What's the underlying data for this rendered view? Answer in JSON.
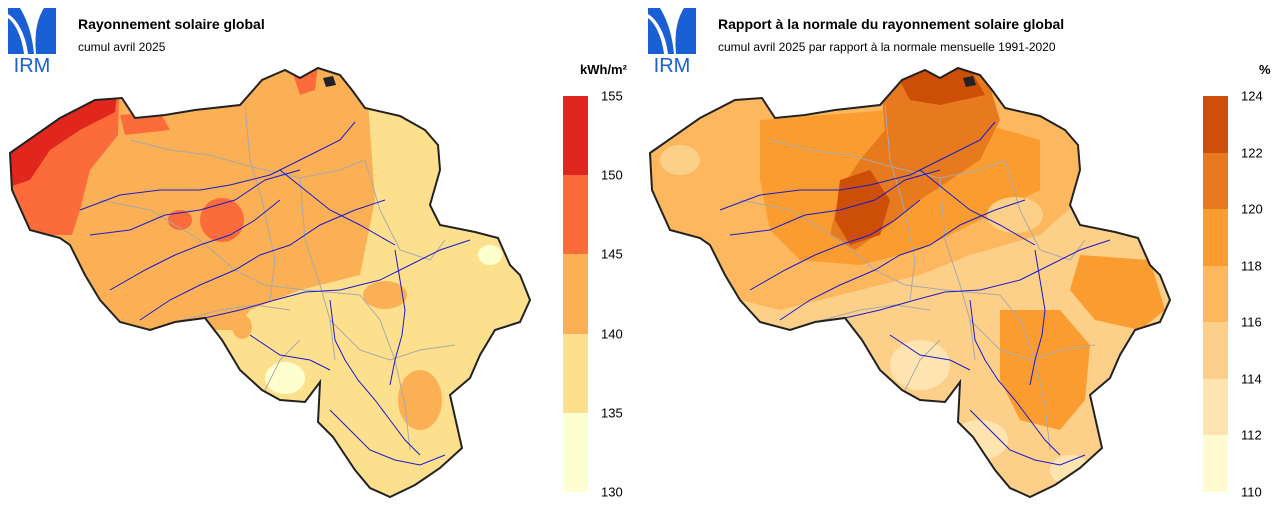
{
  "logo": {
    "text": "IRM",
    "color": "#1a5fd4"
  },
  "maps": [
    {
      "title": "Rayonnement solaire global",
      "subtitle": "cumul avril 2025",
      "unit": "kWh/m²",
      "legend": {
        "ticks": [
          "155",
          "150",
          "145",
          "140",
          "135",
          "130"
        ],
        "colors": [
          "#e0261d",
          "#fb6c3a",
          "#fbb055",
          "#fde08e",
          "#feffcf"
        ]
      }
    },
    {
      "title": "Rapport à la normale du rayonnement solaire global",
      "subtitle": "cumul avril 2025 par rapport à la normale mensuelle 1991-2020",
      "unit": "%",
      "legend": {
        "ticks": [
          "124",
          "122",
          "120",
          "118",
          "116",
          "114",
          "112",
          "110"
        ],
        "colors": [
          "#cc4e07",
          "#e7791e",
          "#fb9c30",
          "#fdb75e",
          "#fdd08a",
          "#fee4b0",
          "#fffacf"
        ]
      }
    }
  ]
}
